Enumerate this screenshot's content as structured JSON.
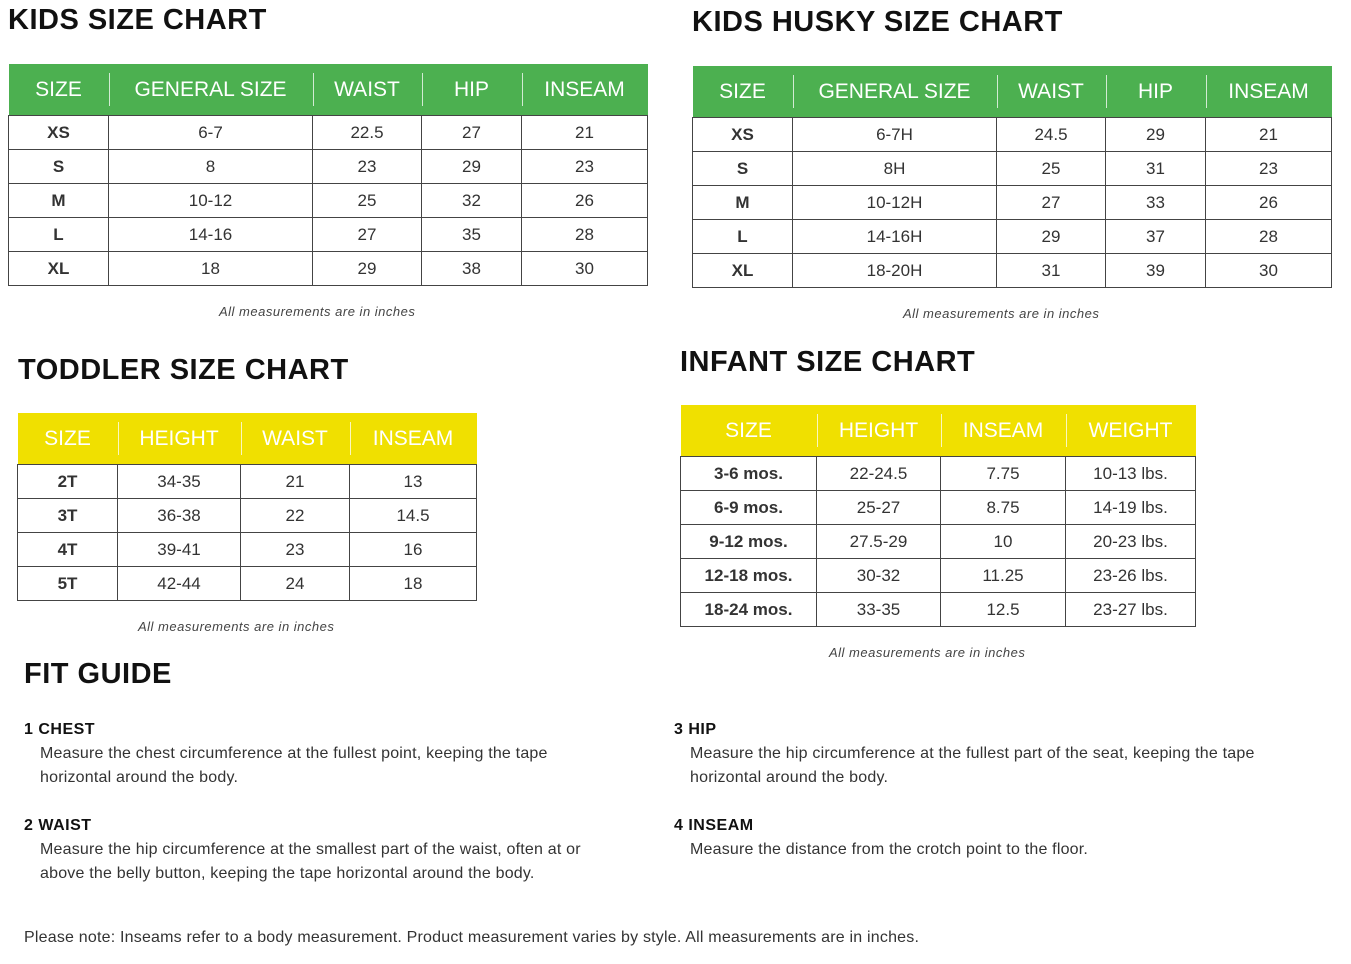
{
  "colors": {
    "green": "#4cb050",
    "yellow": "#f0e000"
  },
  "kids": {
    "title": "KIDS SIZE CHART",
    "headers": [
      "SIZE",
      "GENERAL SIZE",
      "WAIST",
      "HIP",
      "INSEAM"
    ],
    "rows": [
      [
        "XS",
        "6-7",
        "22.5",
        "27",
        "21"
      ],
      [
        "S",
        "8",
        "23",
        "29",
        "23"
      ],
      [
        "M",
        "10-12",
        "25",
        "32",
        "26"
      ],
      [
        "L",
        "14-16",
        "27",
        "35",
        "28"
      ],
      [
        "XL",
        "18",
        "29",
        "38",
        "30"
      ]
    ],
    "note": "All measurements are in inches"
  },
  "husky": {
    "title": "KIDS HUSKY SIZE CHART",
    "headers": [
      "SIZE",
      "GENERAL SIZE",
      "WAIST",
      "HIP",
      "INSEAM"
    ],
    "rows": [
      [
        "XS",
        "6-7H",
        "24.5",
        "29",
        "21"
      ],
      [
        "S",
        "8H",
        "25",
        "31",
        "23"
      ],
      [
        "M",
        "10-12H",
        "27",
        "33",
        "26"
      ],
      [
        "L",
        "14-16H",
        "29",
        "37",
        "28"
      ],
      [
        "XL",
        "18-20H",
        "31",
        "39",
        "30"
      ]
    ],
    "note": "All measurements are in inches"
  },
  "toddler": {
    "title": "TODDLER SIZE CHART",
    "headers": [
      "SIZE",
      "HEIGHT",
      "WAIST",
      "INSEAM"
    ],
    "rows": [
      [
        "2T",
        "34-35",
        "21",
        "13"
      ],
      [
        "3T",
        "36-38",
        "22",
        "14.5"
      ],
      [
        "4T",
        "39-41",
        "23",
        "16"
      ],
      [
        "5T",
        "42-44",
        "24",
        "18"
      ]
    ],
    "note": "All measurements are in inches"
  },
  "infant": {
    "title": "INFANT SIZE CHART",
    "headers": [
      "SIZE",
      "HEIGHT",
      "INSEAM",
      "WEIGHT"
    ],
    "rows": [
      [
        "3-6 mos.",
        "22-24.5",
        "7.75",
        "10-13 lbs."
      ],
      [
        "6-9 mos.",
        "25-27",
        "8.75",
        "14-19 lbs."
      ],
      [
        "9-12 mos.",
        "27.5-29",
        "10",
        "20-23 lbs."
      ],
      [
        "12-18 mos.",
        "30-32",
        "11.25",
        "23-26 lbs."
      ],
      [
        "18-24 mos.",
        "33-35",
        "12.5",
        "23-27 lbs."
      ]
    ],
    "note": "All measurements are in inches"
  },
  "fit": {
    "title": "FIT GUIDE",
    "items": [
      {
        "heading": "1 CHEST",
        "text": "Measure the chest circumference at the fullest point, keeping the tape horizontal around the body."
      },
      {
        "heading": "2 WAIST",
        "text": "Measure the hip circumference at the smallest part of the waist, often at or above the belly button, keeping the tape horizontal around the body."
      },
      {
        "heading": "3 HIP",
        "text": "Measure the hip circumference at the fullest part of the seat, keeping the tape horizontal around the body."
      },
      {
        "heading": "4 INSEAM",
        "text": "Measure the distance from the crotch point to the floor."
      }
    ]
  },
  "footer": "Please note: Inseams refer to a body measurement. Product measurement varies by style. All measurements are in inches."
}
